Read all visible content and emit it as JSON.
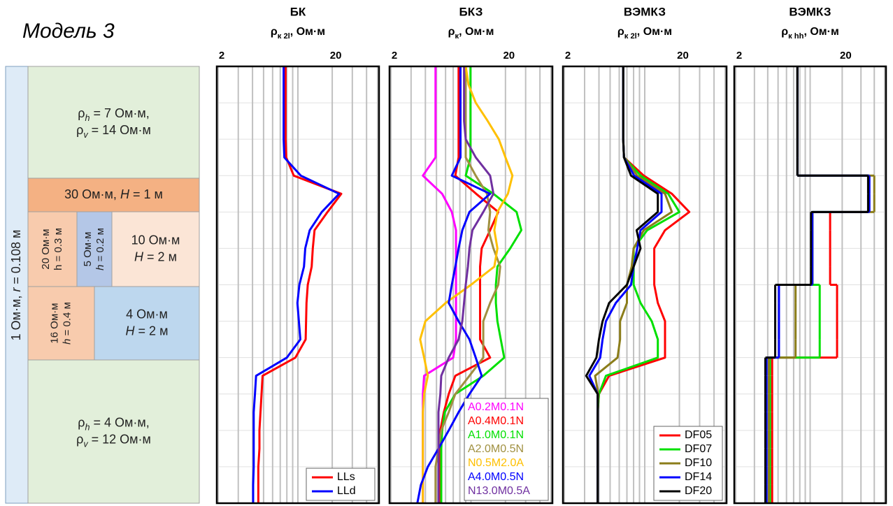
{
  "title": "Модель 3",
  "model": {
    "side_label": [
      {
        "t": "1 Ом·м, "
      },
      {
        "t": "r",
        "style": "italic"
      },
      {
        "t": " = 0.108 м"
      }
    ],
    "blocks": [
      {
        "lines": [
          [
            {
              "t": "ρ"
            },
            {
              "t": "h",
              "style": "sub-italic"
            },
            {
              "t": " = 7 Ом·м,"
            }
          ],
          [
            {
              "t": "ρ"
            },
            {
              "t": "v",
              "style": "sub-italic"
            },
            {
              "t": " = 14 Ом·м"
            }
          ]
        ]
      },
      {
        "lines": [
          [
            {
              "t": "30 Ом·м, "
            },
            {
              "t": "H",
              "style": "italic"
            },
            {
              "t": " = 1 м"
            }
          ]
        ]
      },
      {
        "lines": [
          [
            {
              "t": "20 Ом·м"
            }
          ],
          [
            {
              "t": "h = 0.3 м"
            }
          ]
        ]
      },
      {
        "lines": [
          [
            {
              "t": "5 Ом·м"
            }
          ],
          [
            {
              "t": "h",
              "style": "italic"
            },
            {
              "t": " = 0.2 м"
            }
          ]
        ]
      },
      {
        "lines": [
          [
            {
              "t": "10 Ом·м"
            }
          ],
          [
            {
              "t": "H",
              "style": "italic"
            },
            {
              "t": " = 2 м"
            }
          ]
        ]
      },
      {
        "lines": [
          [
            {
              "t": "16 Ом·м"
            }
          ],
          [
            {
              "t": "h",
              "style": "italic"
            },
            {
              "t": " = 0.4 м"
            }
          ]
        ]
      },
      {
        "lines": [
          [
            {
              "t": "4 Ом·м"
            }
          ],
          [
            {
              "t": "H",
              "style": "italic"
            },
            {
              "t": " = 2 м"
            }
          ]
        ]
      },
      {
        "lines": [
          [
            {
              "t": "ρ"
            },
            {
              "t": "h",
              "style": "sub-italic"
            },
            {
              "t": " = 4 Ом·м,"
            }
          ],
          [
            {
              "t": "ρ"
            },
            {
              "t": "v",
              "style": "sub-italic"
            },
            {
              "t": " = 12 Ом·м"
            }
          ]
        ]
      }
    ]
  },
  "chart_data": [
    {
      "type": "line",
      "title": "БК",
      "xlabel": [
        {
          "t": "ρ"
        },
        {
          "t": "к 2l",
          "style": "sub"
        },
        {
          "t": ", Ом·м"
        }
      ],
      "xscale": "log",
      "xlim": [
        2,
        50
      ],
      "xticks": [
        2,
        20
      ],
      "xgrid": [
        2,
        3,
        4,
        5,
        6,
        7,
        8,
        9,
        10,
        20,
        30,
        40,
        50
      ],
      "legend": "lower right",
      "legend_style": "line",
      "categories": [
        null,
        null,
        null,
        null,
        null,
        null,
        null,
        null,
        null,
        null,
        null,
        null,
        null,
        null,
        null,
        null,
        null,
        null,
        null,
        null,
        null,
        null,
        null,
        null,
        null
      ],
      "series": [
        {
          "name": "LLs",
          "color": "#ff0000",
          "values": [
            7.8,
            7.8,
            7.8,
            7.8,
            7.8,
            7.9,
            9.2,
            24,
            18.2,
            14,
            13.5,
            13.2,
            12.2,
            11.9,
            11.8,
            11.7,
            9.5,
            4.9,
            4.8,
            4.7,
            4.6,
            4.6,
            4.5,
            4.5,
            4.5
          ]
        },
        {
          "name": "LLd",
          "color": "#0000ff",
          "values": [
            7.5,
            7.5,
            7.5,
            7.5,
            7.5,
            7.6,
            10.6,
            23,
            16.2,
            12.7,
            11.6,
            11.3,
            10.3,
            9.9,
            10.2,
            10.5,
            8.0,
            4.3,
            4.2,
            4.1,
            4.1,
            4.1,
            4.1,
            4.05,
            4.05
          ]
        }
      ]
    },
    {
      "type": "line",
      "title": "БКЗ",
      "xlabel": [
        {
          "t": "ρ"
        },
        {
          "t": "к",
          "style": "sub"
        },
        {
          "t": ", Ом·м"
        }
      ],
      "xscale": "log",
      "xlim": [
        2,
        50
      ],
      "xticks": [
        2,
        20
      ],
      "xgrid": [
        2,
        3,
        4,
        5,
        6,
        7,
        8,
        9,
        10,
        20,
        30,
        40,
        50
      ],
      "legend": "lower right",
      "legend_style": "text",
      "categories": [
        null,
        null,
        null,
        null,
        null,
        null,
        null,
        null,
        null,
        null,
        null,
        null,
        null,
        null,
        null,
        null,
        null,
        null,
        null,
        null,
        null,
        null,
        null,
        null,
        null
      ],
      "series": [
        {
          "name": "A0.2M0.1N",
          "color": "#ff00ff",
          "values": [
            4.9,
            4.9,
            4.9,
            4.9,
            4.9,
            4.9,
            3.8,
            5.6,
            6.8,
            7.4,
            7.4,
            7.4,
            7.4,
            7.4,
            7.4,
            7.4,
            7.0,
            3.9,
            3.8,
            3.8,
            3.8,
            3.8,
            3.8,
            3.8,
            3.8
          ]
        },
        {
          "name": "A0.4M0.1N",
          "color": "#ff0000",
          "values": [
            7.8,
            7.8,
            7.8,
            7.8,
            7.8,
            7.8,
            7.3,
            11.1,
            17.3,
            14.7,
            12.4,
            12,
            12,
            12,
            12,
            12,
            14.7,
            7.3,
            6.4,
            5.8,
            5.4,
            5.4,
            5.4,
            5.4,
            5.4
          ]
        },
        {
          "name": "A1.0M0.1N",
          "color": "#00e000",
          "values": [
            9.9,
            9.9,
            9.9,
            9.9,
            9.9,
            9.9,
            9.0,
            15.7,
            25,
            27.5,
            22,
            17,
            16.5,
            16.5,
            17,
            18.2,
            19.5,
            12.8,
            7.3,
            5.9,
            5.6,
            5.5,
            5.5,
            5.5,
            5.5
          ]
        },
        {
          "name": "A2.0M0.5N",
          "color": "#a09040",
          "values": [
            9.0,
            9.0,
            9.0,
            9.0,
            9.0,
            9.0,
            11,
            13.8,
            14.7,
            14.2,
            15.7,
            18,
            17.3,
            14.7,
            12.8,
            12.8,
            12.8,
            9.7,
            7.3,
            6.4,
            5.5,
            5.2,
            4.9,
            4.9,
            4.9
          ]
        },
        {
          "name": "N0.5M2.0A",
          "color": "#ffc000",
          "values": [
            9.0,
            9.5,
            11,
            14,
            17.5,
            20,
            23,
            21,
            17,
            16,
            17,
            16,
            10,
            6,
            4,
            3.6,
            3.9,
            4.2,
            3.9,
            3.8,
            3.8,
            3.8,
            3.8,
            3.8,
            3.8
          ]
        },
        {
          "name": "A4.0M0.5N",
          "color": "#0000ff",
          "values": [
            8.1,
            8.1,
            8.1,
            8.1,
            8.1,
            8.1,
            6.8,
            14.7,
            9.7,
            8.4,
            7.8,
            7.3,
            6.8,
            6.4,
            7.8,
            9.7,
            11,
            12.4,
            9.7,
            7.8,
            6.4,
            5.2,
            4.2,
            3.65,
            3.4
          ]
        },
        {
          "name": "N13.0M0.5A",
          "color": "#7030a0",
          "values": [
            8.7,
            8.7,
            8.7,
            8.7,
            9.0,
            11,
            14.7,
            15.7,
            12.8,
            10.3,
            9.7,
            9.4,
            9.0,
            8.7,
            8.4,
            7.8,
            6.4,
            5.5,
            5.4,
            5.2,
            5.2,
            5.2,
            5.2,
            5.2,
            5.2
          ]
        }
      ]
    },
    {
      "type": "line",
      "title": "ВЭМКЗ",
      "xlabel": [
        {
          "t": "ρ"
        },
        {
          "t": "к 2l",
          "style": "sub"
        },
        {
          "t": ", Ом·м"
        }
      ],
      "xscale": "log",
      "xlim": [
        2,
        50
      ],
      "xticks": [
        2,
        20
      ],
      "xgrid": [
        2,
        3,
        4,
        5,
        6,
        7,
        8,
        9,
        10,
        20,
        30,
        40,
        50
      ],
      "legend": "lower right",
      "legend_style": "line",
      "categories": [
        null,
        null,
        null,
        null,
        null,
        null,
        null,
        null,
        null,
        null,
        null,
        null,
        null,
        null,
        null,
        null,
        null,
        null,
        null,
        null,
        null,
        null,
        null,
        null,
        null
      ],
      "series": [
        {
          "name": "DF05",
          "color": "#ff0000",
          "values": [
            6.5,
            6.5,
            6.5,
            6.5,
            6.5,
            6.6,
            9.8,
            17.2,
            24.4,
            15,
            12.1,
            12.1,
            12.1,
            13,
            15,
            15,
            15,
            4.9,
            4.0,
            3.9,
            3.9,
            3.9,
            3.9,
            3.9,
            3.9
          ]
        },
        {
          "name": "DF07",
          "color": "#00e000",
          "values": [
            6.5,
            6.5,
            6.5,
            6.5,
            6.5,
            6.6,
            9.2,
            16,
            20,
            10.5,
            8.0,
            8.0,
            8.0,
            9.2,
            11.5,
            13,
            13,
            4.6,
            4.0,
            3.9,
            3.9,
            3.9,
            3.9,
            3.9,
            3.9
          ]
        },
        {
          "name": "DF10",
          "color": "#8b7d1a",
          "values": [
            6.5,
            6.5,
            6.5,
            6.5,
            6.5,
            6.6,
            8.6,
            15,
            17.2,
            9.8,
            8.0,
            7.7,
            7.0,
            7.0,
            6.1,
            6.1,
            5.8,
            3.7,
            3.95,
            3.9,
            3.9,
            3.9,
            3.9,
            3.9,
            3.9
          ]
        },
        {
          "name": "DF14",
          "color": "#0000ff",
          "values": [
            6.5,
            6.5,
            6.5,
            6.5,
            6.5,
            6.6,
            8.1,
            14,
            14,
            9.2,
            8.6,
            8.0,
            7.6,
            5.6,
            4.6,
            4.3,
            4.1,
            3.3,
            3.9,
            3.9,
            3.9,
            3.9,
            3.9,
            3.9,
            3.9
          ]
        },
        {
          "name": "DF20",
          "color": "#000000",
          "values": [
            6.5,
            6.5,
            6.5,
            6.5,
            6.5,
            6.6,
            7.6,
            13,
            13,
            8.5,
            9.2,
            8.0,
            7.0,
            4.9,
            4.3,
            4.0,
            3.8,
            3.1,
            3.9,
            3.9,
            3.9,
            3.9,
            3.9,
            3.9,
            3.9
          ]
        }
      ]
    },
    {
      "type": "step",
      "title": "ВЭМКЗ",
      "xlabel": [
        {
          "t": "ρ"
        },
        {
          "t": "к hh",
          "style": "sub"
        },
        {
          "t": ", Ом·м"
        }
      ],
      "xscale": "log",
      "xlim": [
        2,
        50
      ],
      "xticks": [
        2,
        20
      ],
      "xgrid": [
        2,
        3,
        4,
        5,
        6,
        7,
        8,
        9,
        10,
        20,
        30,
        40,
        50
      ],
      "categories": [
        null,
        null,
        null,
        null,
        null,
        null,
        null,
        null,
        null,
        null,
        null,
        null,
        null,
        null,
        null,
        null,
        null,
        null,
        null,
        null,
        null,
        null,
        null,
        null,
        null
      ],
      "series": [
        {
          "color": "#ff0000",
          "values": [
            7.6,
            7.6,
            7.6,
            7.6,
            7.6,
            7.6,
            35.6,
            35.6,
            15.4,
            15.4,
            15.4,
            15.4,
            17.9,
            17.9,
            17.9,
            17.9,
            4.4,
            4.4,
            4.4,
            4.4,
            4.4,
            4.4,
            4.4,
            4.4,
            4.4
          ]
        },
        {
          "color": "#00e000",
          "values": [
            7.6,
            7.6,
            7.6,
            7.6,
            7.6,
            7.6,
            35.6,
            35.6,
            10.5,
            10.5,
            10.5,
            10.5,
            12.3,
            12.3,
            12.3,
            12.3,
            4.2,
            4.2,
            4.2,
            4.2,
            4.2,
            4.2,
            4.2,
            4.2,
            4.2
          ]
        },
        {
          "color": "#8b7d1a",
          "values": [
            7.6,
            7.6,
            7.6,
            7.6,
            7.6,
            7.6,
            40,
            40,
            10.5,
            10.5,
            10.5,
            10.5,
            7.3,
            7.3,
            7.3,
            7.3,
            4.1,
            4.1,
            4.1,
            4.1,
            4.1,
            4.1,
            4.1,
            4.1,
            4.1
          ]
        },
        {
          "color": "#0000ff",
          "values": [
            7.6,
            7.6,
            7.6,
            7.6,
            7.6,
            7.6,
            36,
            36,
            10.5,
            10.5,
            10.5,
            10.5,
            5.1,
            5.1,
            5.1,
            5.1,
            3.9,
            3.9,
            3.9,
            3.9,
            3.9,
            3.9,
            3.9,
            3.9,
            3.9
          ]
        },
        {
          "color": "#000000",
          "values": [
            7.6,
            7.6,
            7.6,
            7.6,
            7.6,
            7.6,
            35,
            35,
            10.2,
            10.2,
            10.2,
            10.2,
            4.7,
            4.7,
            4.7,
            4.7,
            3.8,
            3.8,
            3.8,
            3.8,
            3.8,
            3.8,
            3.8,
            3.8,
            3.8
          ]
        }
      ]
    }
  ]
}
